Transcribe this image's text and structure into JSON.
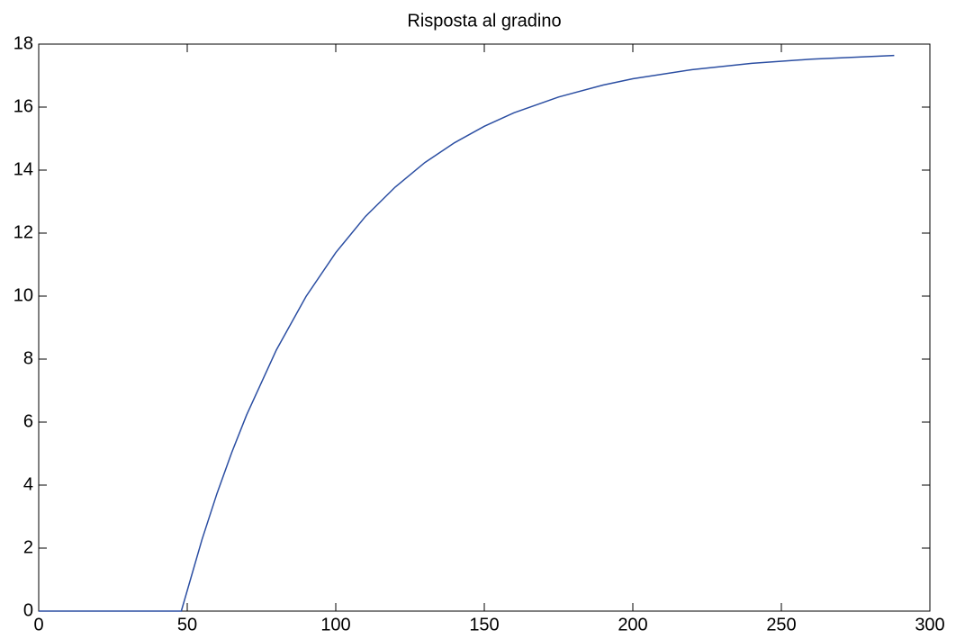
{
  "chart_data": {
    "type": "line",
    "title": "Risposta al gradino",
    "x": [
      0,
      48,
      55,
      60,
      65,
      70,
      80,
      90,
      100,
      110,
      120,
      130,
      140,
      150,
      160,
      175,
      190,
      200,
      220,
      240,
      260,
      288
    ],
    "series": [
      {
        "color": "#2b4ea2",
        "values": [
          0,
          0,
          2.28,
          3.73,
          5.04,
          6.23,
          8.29,
          9.99,
          11.38,
          12.53,
          13.46,
          14.24,
          14.87,
          15.39,
          15.82,
          16.32,
          16.7,
          16.9,
          17.19,
          17.39,
          17.52,
          17.64
        ]
      }
    ],
    "xlim": [
      0,
      300
    ],
    "xticks": [
      0,
      50,
      100,
      150,
      200,
      250,
      300
    ],
    "ylim": [
      0,
      18
    ],
    "yticks": [
      0,
      2,
      4,
      6,
      8,
      10,
      12,
      14,
      16,
      18
    ]
  }
}
